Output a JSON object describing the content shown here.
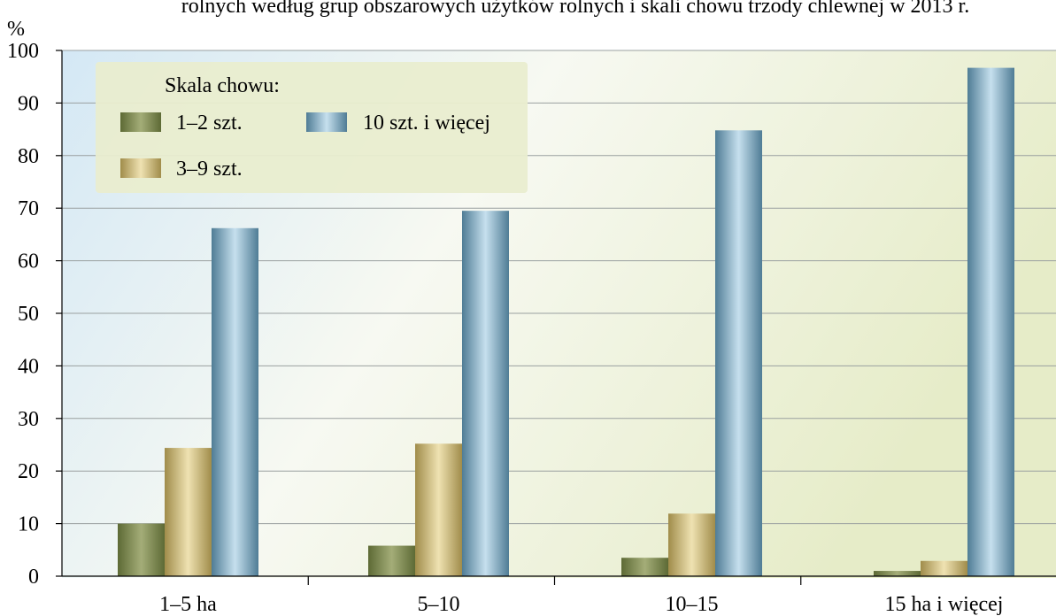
{
  "chart_title_partial": "rolnych według grup obszarowych użytków rolnych i skali chowu trzody chlewnej w 2013 r.",
  "chart_data": {
    "type": "bar",
    "title": "rolnych według grup obszarowych użytków rolnych i skali chowu trzody chlewnej w 2013 r.",
    "ylabel": "%",
    "xlabel": "",
    "ylim": [
      0,
      100
    ],
    "yticks": [
      0,
      10,
      20,
      30,
      40,
      50,
      60,
      70,
      80,
      90,
      100
    ],
    "categories": [
      "1–5 ha",
      "5–10",
      "10–15",
      "15 ha i więcej"
    ],
    "grid": true,
    "legend": {
      "title": "Skala chowu:",
      "placement": "top-left"
    },
    "series": [
      {
        "name": "1–2 szt.",
        "values": [
          10,
          5.8,
          3.5,
          1
        ],
        "color": "#7e8a52"
      },
      {
        "name": "3–9 szt.",
        "values": [
          24.4,
          25.2,
          11.9,
          2.9
        ],
        "color": "#c8b477"
      },
      {
        "name": "10 szt. i więcej",
        "values": [
          66.2,
          69.5,
          84.8,
          96.7
        ],
        "color": "#78a3bb"
      }
    ]
  }
}
